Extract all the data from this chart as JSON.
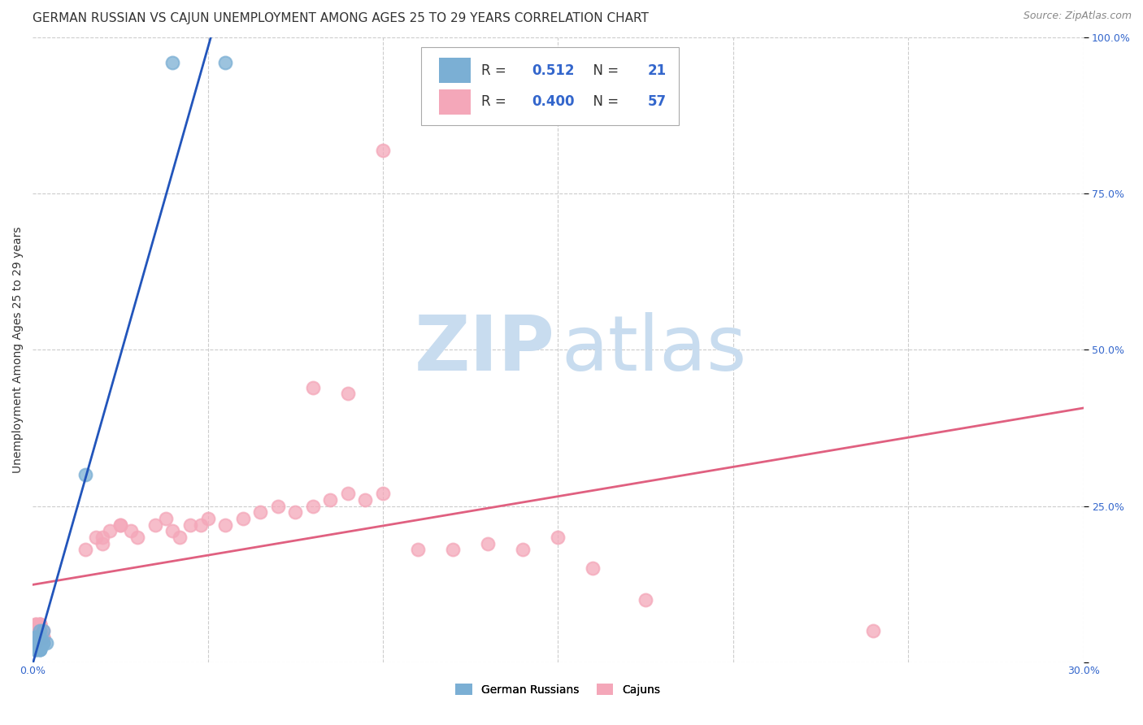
{
  "title": "GERMAN RUSSIAN VS CAJUN UNEMPLOYMENT AMONG AGES 25 TO 29 YEARS CORRELATION CHART",
  "source": "Source: ZipAtlas.com",
  "ylabel": "Unemployment Among Ages 25 to 29 years",
  "xlim": [
    0.0,
    0.3
  ],
  "ylim": [
    0.0,
    1.0
  ],
  "xticks": [
    0.0,
    0.05,
    0.1,
    0.15,
    0.2,
    0.25,
    0.3
  ],
  "xticklabels": [
    "0.0%",
    "",
    "",
    "",
    "",
    "",
    "30.0%"
  ],
  "yticks_right": [
    0.0,
    0.25,
    0.5,
    0.75,
    1.0
  ],
  "yticklabels_right": [
    "",
    "25.0%",
    "50.0%",
    "75.0%",
    "100.0%"
  ],
  "german_russian_color": "#7BAFD4",
  "cajun_color": "#F4A7B9",
  "german_russian_line_color": "#2255BB",
  "cajun_line_color": "#E06080",
  "legend_R_german": "0.512",
  "legend_N_german": "21",
  "legend_R_cajun": "0.400",
  "legend_N_cajun": "57",
  "watermark_zip": "ZIP",
  "watermark_atlas": "atlas",
  "background_color": "#FFFFFF",
  "grid_color": "#CCCCCC",
  "german_russian_x": [
    0.002,
    0.004,
    0.001,
    0.002,
    0.001,
    0.002,
    0.003,
    0.001,
    0.002,
    0.001,
    0.003,
    0.002,
    0.001,
    0.002,
    0.003,
    0.015,
    0.001,
    0.002,
    0.001,
    0.04,
    0.055
  ],
  "german_russian_y": [
    0.02,
    0.03,
    0.02,
    0.05,
    0.04,
    0.03,
    0.05,
    0.03,
    0.04,
    0.02,
    0.03,
    0.02,
    0.03,
    0.02,
    0.03,
    0.3,
    0.04,
    0.03,
    0.02,
    0.96,
    0.96
  ],
  "cajun_x": [
    0.001,
    0.002,
    0.001,
    0.002,
    0.003,
    0.001,
    0.002,
    0.001,
    0.002,
    0.003,
    0.001,
    0.002,
    0.003,
    0.002,
    0.001,
    0.002,
    0.001,
    0.002,
    0.003,
    0.002,
    0.015,
    0.02,
    0.025,
    0.02,
    0.018,
    0.022,
    0.025,
    0.03,
    0.028,
    0.035,
    0.038,
    0.04,
    0.045,
    0.042,
    0.048,
    0.05,
    0.055,
    0.06,
    0.065,
    0.07,
    0.075,
    0.08,
    0.085,
    0.09,
    0.095,
    0.1,
    0.11,
    0.12,
    0.13,
    0.14,
    0.15,
    0.16,
    0.175,
    0.24,
    0.08,
    0.09,
    0.1
  ],
  "cajun_y": [
    0.03,
    0.05,
    0.04,
    0.06,
    0.04,
    0.05,
    0.04,
    0.06,
    0.05,
    0.04,
    0.03,
    0.05,
    0.04,
    0.06,
    0.04,
    0.05,
    0.06,
    0.04,
    0.05,
    0.06,
    0.18,
    0.2,
    0.22,
    0.19,
    0.2,
    0.21,
    0.22,
    0.2,
    0.21,
    0.22,
    0.23,
    0.21,
    0.22,
    0.2,
    0.22,
    0.23,
    0.22,
    0.23,
    0.24,
    0.25,
    0.24,
    0.25,
    0.26,
    0.27,
    0.26,
    0.27,
    0.18,
    0.18,
    0.19,
    0.18,
    0.2,
    0.15,
    0.1,
    0.05,
    0.44,
    0.43,
    0.82
  ],
  "title_fontsize": 11,
  "axis_label_fontsize": 10,
  "tick_fontsize": 9,
  "legend_fontsize": 12
}
